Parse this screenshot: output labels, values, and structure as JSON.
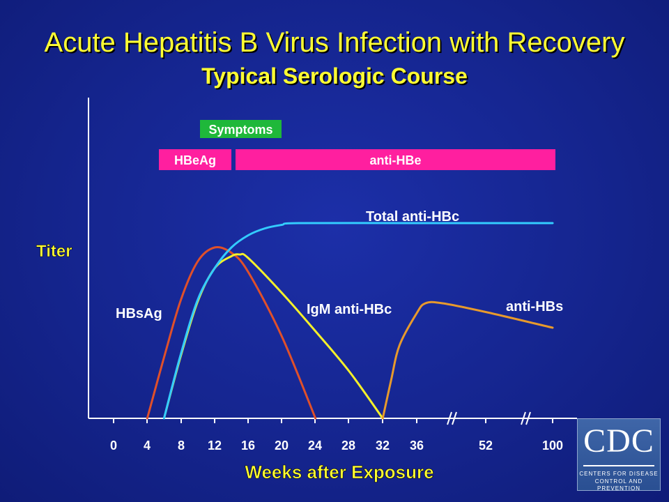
{
  "title": "Acute Hepatitis B Virus Infection with Recovery",
  "subtitle": "Typical Serologic Course",
  "logo": {
    "text": "CDC",
    "line1": "CENTERS FOR DISEASE",
    "line2": "CONTROL AND PREVENTION"
  },
  "colors": {
    "background": "#15258f",
    "title": "#ffff33",
    "axis": "#ffffff",
    "hbsag": "#e0502a",
    "igm_anti_hbc": "#f4f02a",
    "total_anti_hbc": "#33ccff",
    "anti_hbs": "#e89a2c",
    "hbeag_bar": "#ff1f9f",
    "anti_hbe_bar": "#ff1f9f",
    "symptoms_bar": "#1fb83a"
  },
  "chart_data": {
    "type": "line",
    "xlabel": "Weeks after Exposure",
    "ylabel": "Titer",
    "x_tick_labels": [
      "0",
      "4",
      "8",
      "12",
      "16",
      "20",
      "24",
      "28",
      "32",
      "36",
      "52",
      "100"
    ],
    "x_scale": "broken axis (breaks between 36 and 52, and between 52 and 100)",
    "y_scale": "relative titer, no numeric ticks, 0-1",
    "grid": false,
    "series": [
      {
        "name": "HBsAg",
        "x": [
          4,
          6,
          8,
          10,
          12,
          14,
          16,
          20,
          24
        ],
        "y": [
          0,
          0.35,
          0.68,
          0.9,
          0.98,
          0.95,
          0.84,
          0.47,
          0
        ]
      },
      {
        "name": "IgM anti-HBc",
        "x": [
          6,
          8,
          10,
          12,
          14,
          15,
          16,
          20,
          24,
          28,
          32
        ],
        "y": [
          0,
          0.36,
          0.67,
          0.86,
          0.93,
          0.94,
          0.92,
          0.72,
          0.5,
          0.27,
          0
        ]
      },
      {
        "name": "Total anti-HBc",
        "x": [
          6,
          8,
          10,
          12,
          14,
          16,
          18,
          20,
          22,
          36,
          52,
          100
        ],
        "y": [
          0,
          0.37,
          0.68,
          0.86,
          0.98,
          1.05,
          1.09,
          1.11,
          1.12,
          1.12,
          1.12,
          1.12
        ]
      },
      {
        "name": "anti-HBs",
        "x": [
          32,
          33,
          34,
          36,
          38,
          42,
          52,
          100
        ],
        "y": [
          0,
          0.22,
          0.42,
          0.6,
          0.66,
          0.66,
          0.61,
          0.52
        ]
      }
    ],
    "bars": [
      {
        "label": "Symptoms",
        "x_start": 10,
        "x_end": 20
      },
      {
        "label": "HBeAg",
        "x_start": 5,
        "x_end": 13
      },
      {
        "label": "anti-HBe",
        "x_start": 14,
        "x_end": 100
      }
    ]
  }
}
